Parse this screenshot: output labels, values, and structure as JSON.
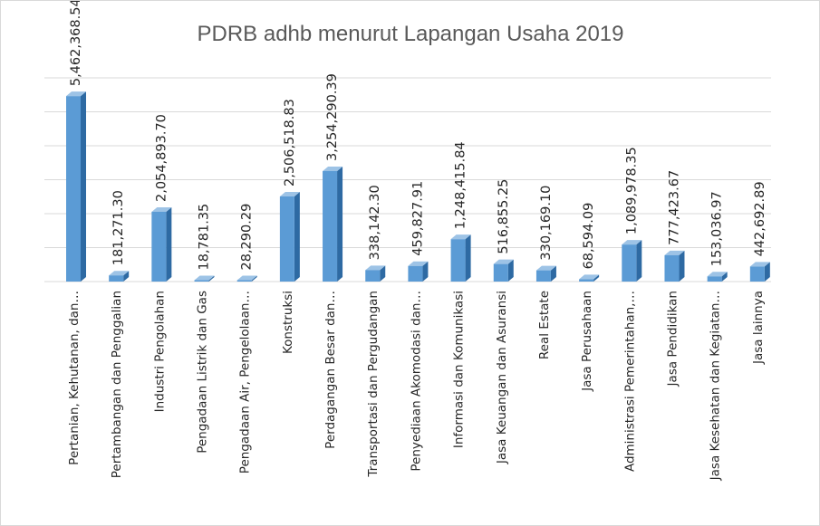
{
  "chart_data": {
    "type": "bar",
    "title": "PDRB adhb menurut Lapangan Usaha 2019",
    "xlabel": "",
    "ylabel": "",
    "ylim": [
      0,
      6000000
    ],
    "grid": true,
    "bar_color": "#5b9bd5",
    "bar_side_color": "#2e6aa3",
    "bar_top_color": "#9dc3e6",
    "categories": [
      "Pertanian, Kehutanan, dan…",
      "Pertambangan dan Penggalian",
      "Industri Pengolahan",
      "Pengadaan Listrik dan Gas",
      "Pengadaan Air, Pengelolaan…",
      "Konstruksi",
      "Perdagangan Besar dan…",
      "Transportasi dan Pergudangan",
      "Penyediaan Akomodasi dan…",
      "Informasi dan Komunikasi",
      "Jasa Keuangan dan Asuransi",
      "Real Estate",
      "Jasa Perusahaan",
      "Administrasi Pemerintahan,…",
      "Jasa Pendidikan",
      "Jasa Kesehatan dan Kegiatan…",
      "Jasa lainnya"
    ],
    "values": [
      5462368.54,
      181271.3,
      2054893.7,
      18781.35,
      28290.29,
      2506518.83,
      3254290.39,
      338142.3,
      459827.91,
      1248415.84,
      516855.25,
      330169.1,
      68594.09,
      1089978.35,
      777423.67,
      153036.97,
      442692.89
    ],
    "data_labels": [
      "5,462,368.54",
      "181,271.30",
      "2,054,893.70",
      "18,781.35",
      "28,290.29",
      "2,506,518.83",
      "3,254,290.39",
      "338,142.30",
      "459,827.91",
      "1,248,415.84",
      "516,855.25",
      "330,169.10",
      "68,594.09",
      "1,089,978.35",
      "777,423.67",
      "153,036.97",
      "442,692.89"
    ]
  }
}
